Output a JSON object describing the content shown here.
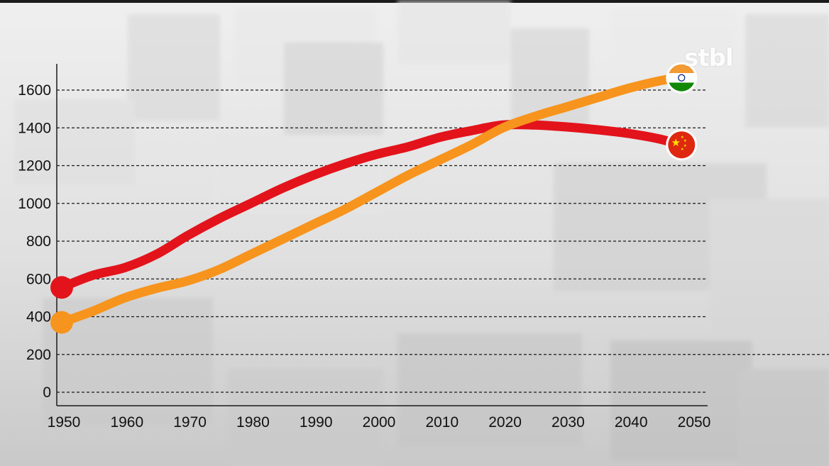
{
  "logo_text": "stbl",
  "chart_data": {
    "type": "line",
    "title": "",
    "xlabel": "",
    "ylabel": "",
    "xlim": [
      1950,
      2050
    ],
    "ylim": [
      0,
      1700
    ],
    "grid": "dashed horizontal",
    "x_ticks": [
      "1950",
      "1960",
      "1970",
      "1980",
      "1990",
      "2000",
      "2010",
      "2020",
      "2030",
      "2040",
      "2050"
    ],
    "y_ticks": [
      "0",
      "200",
      "400",
      "600",
      "800",
      "1000",
      "1200",
      "1400",
      "1600"
    ],
    "series": [
      {
        "name": "",
        "flag": "china-flag",
        "color": "#e3131b",
        "x": [
          1950,
          1955,
          1960,
          1965,
          1970,
          1975,
          1980,
          1985,
          1990,
          1995,
          2000,
          2005,
          2010,
          2015,
          2020,
          2025,
          2030,
          2035,
          2040,
          2045,
          2048
        ],
        "y": [
          555,
          620,
          660,
          730,
          830,
          920,
          1000,
          1080,
          1150,
          1210,
          1260,
          1300,
          1350,
          1385,
          1415,
          1415,
          1405,
          1390,
          1370,
          1340,
          1310
        ]
      },
      {
        "name": "",
        "flag": "india-flag",
        "color": "#f7941d",
        "x": [
          1950,
          1955,
          1960,
          1965,
          1970,
          1975,
          1980,
          1985,
          1990,
          1995,
          2000,
          2005,
          2010,
          2015,
          2020,
          2025,
          2030,
          2035,
          2040,
          2045,
          2048
        ],
        "y": [
          370,
          430,
          500,
          550,
          590,
          650,
          730,
          810,
          890,
          970,
          1060,
          1150,
          1230,
          1310,
          1400,
          1460,
          1510,
          1560,
          1610,
          1650,
          1665
        ]
      }
    ]
  }
}
